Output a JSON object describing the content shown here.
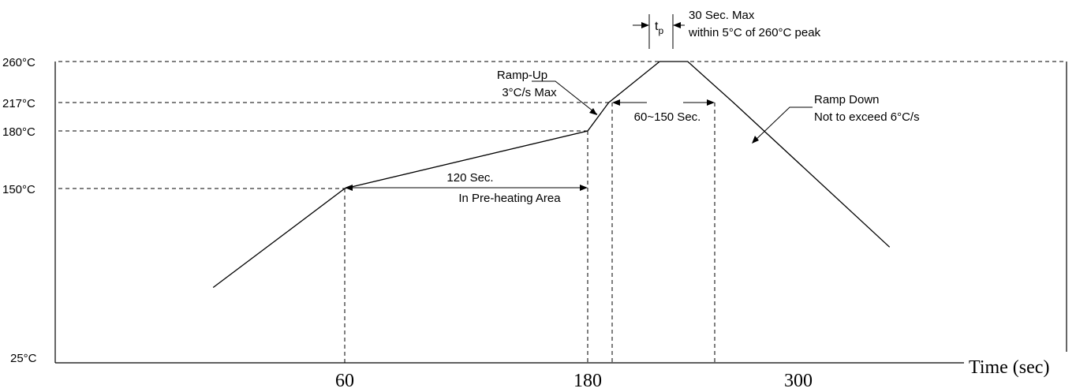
{
  "chart_data": {
    "type": "line",
    "title": "",
    "xlabel": "Time (sec)",
    "ylabel": "",
    "grid": false,
    "x_ticks": [
      "60",
      "180",
      "300"
    ],
    "y_ticks": [
      "25°C",
      "150°C",
      "180°C",
      "217°C",
      "260°C"
    ],
    "series": [
      {
        "points": [
          {
            "time": -5,
            "temp": 79
          },
          {
            "time": 60,
            "temp": 150
          },
          {
            "time": 180,
            "temp": 180
          },
          {
            "time": 192,
            "temp": 217
          },
          {
            "time": 221,
            "temp": 260
          },
          {
            "time": 237,
            "temp": 260
          },
          {
            "time": 263,
            "temp": 217
          },
          {
            "time": 352,
            "temp": 108
          }
        ]
      }
    ],
    "annotations": {
      "tp_symbol": "t",
      "tp_subscript": "p",
      "tp_line1": "30 Sec. Max",
      "tp_line2": "within 5°C of 260°C peak",
      "rampup_line1": "Ramp-Up",
      "rampup_line2": "3°C/s Max",
      "above217": "60~150 Sec.",
      "rampdown_line1": "Ramp Down",
      "rampdown_line2": "Not to exceed 6°C/s",
      "preheat_line1": "120 Sec.",
      "preheat_line2": "In Pre-heating Area"
    }
  }
}
